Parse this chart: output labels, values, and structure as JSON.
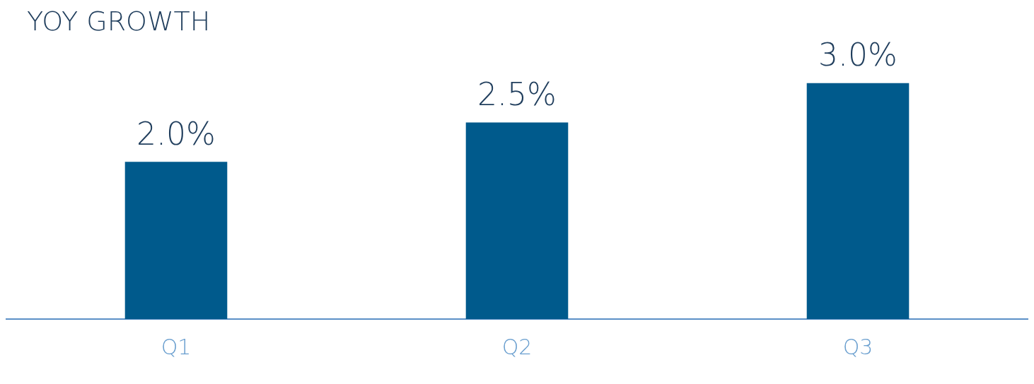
{
  "chart_data": {
    "type": "bar",
    "title": "YOY GROWTH",
    "categories": [
      "Q1",
      "Q2",
      "Q3"
    ],
    "values": [
      2.0,
      2.5,
      3.0
    ],
    "value_labels": [
      "2.0%",
      "2.5%",
      "3.0%"
    ],
    "color": "#005a8c",
    "grid": false,
    "legend": false
  }
}
